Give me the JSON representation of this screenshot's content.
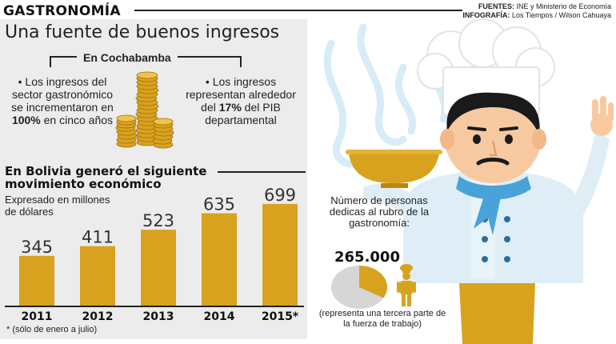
{
  "header": {
    "section": "GASTRONOMÍA",
    "sources_label": "FUENTES:",
    "sources_value": "INE y Ministerio de Economía",
    "infographic_label": "INFOGRAFÍA:",
    "infographic_value": "Los Tiempos / Wilson Cahuaya"
  },
  "headline": "Una fuente de buenos ingresos",
  "cochabamba": {
    "label": "En Cochabamba",
    "fact1_pre": "• Los ingresos del sector gastronómico se incrementaron en ",
    "fact1_bold": "100%",
    "fact1_post": " en cinco años",
    "fact2_pre": "• Los ingresos representan alrededor del ",
    "fact2_bold": "17%",
    "fact2_post": " del PIB departamental"
  },
  "bolivia": {
    "subhead": "En Bolivia generó el siguiente movimiento económico",
    "units": "Expresado en millones de dólares",
    "footnote": "* (sólo de enero a julio)"
  },
  "chart_data": {
    "type": "bar",
    "categories": [
      "2011",
      "2012",
      "2013",
      "2014",
      "2015*"
    ],
    "values": [
      345,
      411,
      523,
      635,
      699
    ],
    "title": "En Bolivia generó el siguiente movimiento económico",
    "xlabel": "",
    "ylabel": "Expresado en millones de dólares",
    "ylim": [
      0,
      720
    ],
    "bar_color": "#d9a21e",
    "grid": false
  },
  "workforce": {
    "label": "Número de personas dedicas al rubro de la gastronomía:",
    "count": "265.000",
    "note": "(representa una tercera parte de la fuerza de trabajo)",
    "share": 0.3333
  },
  "colors": {
    "gold": "#d9a21e",
    "panel_gray": "#ececec",
    "scarf_blue": "#4aa3d8",
    "pie_gray": "#d6d6d6"
  },
  "icons": [
    "coin-stack-icon",
    "chef-illustration",
    "chef-figure-icon",
    "pie-chart-icon"
  ]
}
